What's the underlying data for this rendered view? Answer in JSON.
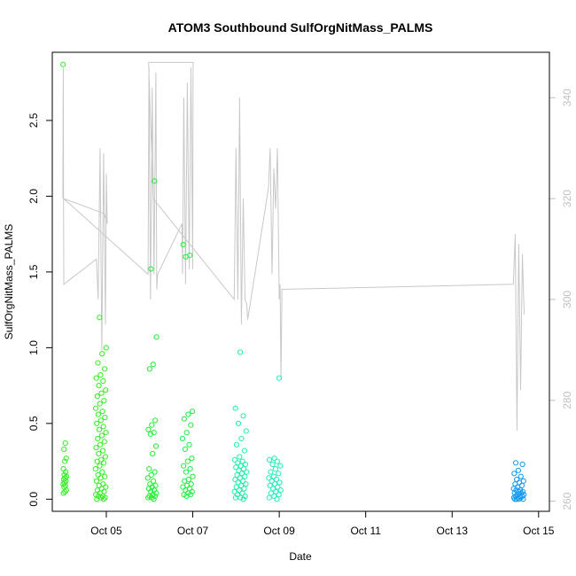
{
  "chart_data": {
    "type": "scatter",
    "title": "ATOM3 Southbound SulfOrgNitMass_PALMS",
    "xlabel": "Date",
    "ylabel": "SulfOrgNitMass_PALMS",
    "x_ticks": [
      "Oct 05",
      "Oct 07",
      "Oct 09",
      "Oct 11",
      "Oct 13",
      "Oct 15"
    ],
    "y_ticks": [
      "0.0",
      "0.5",
      "1.0",
      "1.5",
      "2.0",
      "2.5"
    ],
    "y2_ticks": [
      "260",
      "280",
      "300",
      "320",
      "340"
    ],
    "xlim": [
      "2017-10-03T18:00",
      "2017-10-15T06:00"
    ],
    "ylim": [
      -0.08,
      2.95
    ],
    "y2lim": [
      258,
      349
    ],
    "grid": false,
    "legend": "none",
    "colors": {
      "background": "#ffffff",
      "frame": "#000000",
      "secondary_line": "#c8c8c8",
      "secondary_axis": "#c0c0c0"
    },
    "flights": [
      {
        "start": "2017-10-04T00:00",
        "end": "2017-10-04T02:00",
        "color": "#33ee22",
        "values": [
          2.87,
          0.37,
          0.33,
          0.27,
          0.25,
          0.2,
          0.18,
          0.16,
          0.15,
          0.14,
          0.13,
          0.12,
          0.11,
          0.1,
          0.09,
          0.08,
          0.06,
          0.05,
          0.04
        ]
      },
      {
        "start": "2017-10-04T18:00",
        "end": "2017-10-05T00:00",
        "color": "#33ee22",
        "values": [
          1.2,
          1.0,
          0.96,
          0.9,
          0.86,
          0.82,
          0.8,
          0.78,
          0.75,
          0.72,
          0.7,
          0.68,
          0.65,
          0.63,
          0.6,
          0.58,
          0.56,
          0.54,
          0.52,
          0.5,
          0.48,
          0.46,
          0.44,
          0.42,
          0.4,
          0.38,
          0.36,
          0.34,
          0.32,
          0.3,
          0.28,
          0.26,
          0.25,
          0.24,
          0.22,
          0.2,
          0.18,
          0.16,
          0.15,
          0.14,
          0.12,
          0.1,
          0.09,
          0.08,
          0.07,
          0.06,
          0.05,
          0.04,
          0.03,
          0.02,
          0.02,
          0.01,
          0.01,
          0.0,
          0.0
        ]
      },
      {
        "start": "2017-10-05T23:00",
        "end": "2017-10-06T04:00",
        "color": "#22ee33",
        "values": [
          2.1,
          1.52,
          1.07,
          0.89,
          0.86,
          0.52,
          0.49,
          0.46,
          0.44,
          0.43,
          0.35,
          0.3,
          0.2,
          0.18,
          0.16,
          0.14,
          0.12,
          0.1,
          0.09,
          0.08,
          0.07,
          0.06,
          0.05,
          0.04,
          0.03,
          0.02,
          0.02,
          0.01,
          0.01,
          0.0
        ]
      },
      {
        "start": "2017-10-06T18:00",
        "end": "2017-10-07T00:00",
        "color": "#22ee44",
        "values": [
          1.68,
          1.61,
          1.6,
          0.58,
          0.56,
          0.53,
          0.49,
          0.44,
          0.4,
          0.36,
          0.33,
          0.27,
          0.25,
          0.22,
          0.2,
          0.18,
          0.15,
          0.13,
          0.12,
          0.1,
          0.09,
          0.08,
          0.07,
          0.06,
          0.05,
          0.04,
          0.03,
          0.03,
          0.02
        ]
      },
      {
        "start": "2017-10-07T23:00",
        "end": "2017-10-08T06:00",
        "color": "#22eeaa",
        "values": [
          0.97,
          0.6,
          0.55,
          0.5,
          0.45,
          0.4,
          0.36,
          0.32,
          0.28,
          0.26,
          0.25,
          0.24,
          0.23,
          0.22,
          0.21,
          0.2,
          0.19,
          0.18,
          0.17,
          0.16,
          0.15,
          0.14,
          0.13,
          0.12,
          0.11,
          0.1,
          0.09,
          0.08,
          0.07,
          0.06,
          0.05,
          0.04,
          0.03,
          0.02,
          0.01,
          0.01,
          0.0
        ]
      },
      {
        "start": "2017-10-08T18:00",
        "end": "2017-10-09T01:00",
        "color": "#22eebb",
        "values": [
          0.8,
          0.27,
          0.26,
          0.25,
          0.23,
          0.22,
          0.2,
          0.18,
          0.17,
          0.15,
          0.14,
          0.13,
          0.12,
          0.11,
          0.1,
          0.09,
          0.08,
          0.07,
          0.06,
          0.05,
          0.04,
          0.03,
          0.02,
          0.01,
          0.0
        ]
      },
      {
        "start": "2017-10-14T10:00",
        "end": "2017-10-14T16:00",
        "color": "#1199ee",
        "values": [
          0.24,
          0.23,
          0.19,
          0.17,
          0.15,
          0.13,
          0.12,
          0.11,
          0.1,
          0.09,
          0.08,
          0.07,
          0.06,
          0.06,
          0.05,
          0.05,
          0.04,
          0.04,
          0.03,
          0.03,
          0.02,
          0.02,
          0.02,
          0.01,
          0.01,
          0.01,
          0.0,
          0.0,
          0.0,
          0.0
        ]
      }
    ],
    "secondary_line": [
      [
        "2017-10-03T23:50",
        320
      ],
      [
        "2017-10-04T00:05",
        346
      ],
      [
        "2017-10-04T00:15",
        320
      ],
      [
        "2017-10-04T00:25",
        303
      ],
      [
        "2017-10-04T18:30",
        308
      ],
      [
        "2017-10-04T19:30",
        300
      ],
      [
        "2017-10-04T20:30",
        330
      ],
      [
        "2017-10-04T21:30",
        290
      ],
      [
        "2017-10-04T22:30",
        329
      ],
      [
        "2017-10-04T23:30",
        295
      ],
      [
        "2017-10-05T00:00",
        325
      ],
      [
        "2017-10-05T00:30",
        315
      ],
      [
        "2017-10-04T23:00",
        317
      ],
      [
        "2017-10-04T00:20",
        320
      ],
      [
        "2017-10-05T23:10",
        305
      ],
      [
        "2017-10-05T23:40",
        346
      ],
      [
        "2017-10-06T00:30",
        300
      ],
      [
        "2017-10-06T01:30",
        342
      ],
      [
        "2017-10-06T02:30",
        305
      ],
      [
        "2017-10-06T03:30",
        345
      ],
      [
        "2017-10-06T04:00",
        302
      ],
      [
        "2017-10-06T04:30",
        305
      ],
      [
        "2017-10-06T18:00",
        315
      ],
      [
        "2017-10-06T18:20",
        305
      ],
      [
        "2017-10-06T19:00",
        340
      ],
      [
        "2017-10-06T20:00",
        303
      ],
      [
        "2017-10-06T21:00",
        343
      ],
      [
        "2017-10-06T22:00",
        306
      ],
      [
        "2017-10-06T23:00",
        346
      ],
      [
        "2017-10-07T00:00",
        306
      ],
      [
        "2017-10-07T00:10",
        346
      ],
      [
        "2017-10-07T00:15",
        347
      ],
      [
        "2017-10-05T23:30",
        347
      ],
      [
        "2017-10-06T02:00",
        320
      ],
      [
        "2017-10-07T23:00",
        300
      ],
      [
        "2017-10-08T00:00",
        330
      ],
      [
        "2017-10-08T01:00",
        300
      ],
      [
        "2017-10-08T02:00",
        340
      ],
      [
        "2017-10-08T03:00",
        295
      ],
      [
        "2017-10-08T04:00",
        320
      ],
      [
        "2017-10-08T05:00",
        300
      ],
      [
        "2017-10-08T06:00",
        299
      ],
      [
        "2017-10-08T06:30",
        296
      ],
      [
        "2017-10-08T18:00",
        322
      ],
      [
        "2017-10-08T19:00",
        330
      ],
      [
        "2017-10-08T20:00",
        305
      ],
      [
        "2017-10-08T21:00",
        326
      ],
      [
        "2017-10-08T22:00",
        318
      ],
      [
        "2017-10-08T23:00",
        330
      ],
      [
        "2017-10-09T00:00",
        300
      ],
      [
        "2017-10-09T00:30",
        303
      ],
      [
        "2017-10-09T01:00",
        284
      ],
      [
        "2017-10-09T01:30",
        302
      ],
      [
        "2017-10-14T10:00",
        303
      ],
      [
        "2017-10-14T11:00",
        313
      ],
      [
        "2017-10-14T12:00",
        274
      ],
      [
        "2017-10-14T13:00",
        311
      ],
      [
        "2017-10-14T14:00",
        282
      ],
      [
        "2017-10-14T15:00",
        309
      ],
      [
        "2017-10-14T16:00",
        297
      ]
    ]
  }
}
